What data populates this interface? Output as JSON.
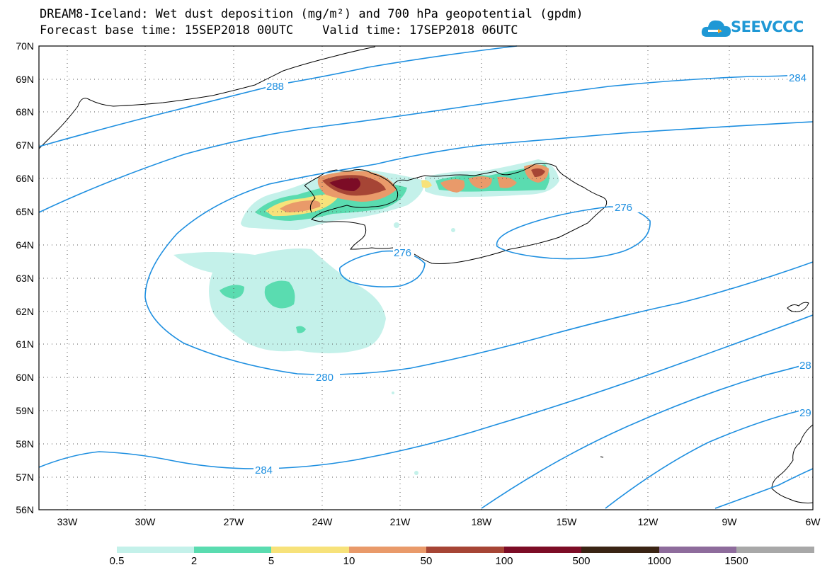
{
  "header": {
    "title_line1": "DREAM8-Iceland: Wet dust deposition (mg/m²) and 700 hPa geopotential (gpdm)",
    "title_line2": "Forecast base time: 15SEP2018 00UTC    Valid time: 17SEP2018 06UTC",
    "logo_text": "SEEVCCC"
  },
  "map": {
    "lat_labels": [
      "70N",
      "69N",
      "68N",
      "67N",
      "66N",
      "65N",
      "64N",
      "63N",
      "62N",
      "61N",
      "60N",
      "59N",
      "58N",
      "57N",
      "56N"
    ],
    "lon_labels": [
      "33W",
      "30W",
      "27W",
      "24W",
      "21W",
      "18W",
      "15W",
      "12W",
      "9W",
      "6W"
    ],
    "contour_labels": [
      "288",
      "284",
      "276",
      "276",
      "280",
      "284",
      "28",
      "29"
    ],
    "contour_color": "#1e8fe0",
    "coast_color": "#000000"
  },
  "legend": {
    "colors": [
      "#c4f1ea",
      "#5adcb0",
      "#f7e27a",
      "#e99a6a",
      "#a64535",
      "#7c0c26",
      "#3a2414",
      "#8e6c9c",
      "#a8a8a8"
    ],
    "labels": [
      "0.5",
      "2",
      "5",
      "10",
      "50",
      "100",
      "500",
      "1000",
      "1500"
    ]
  }
}
